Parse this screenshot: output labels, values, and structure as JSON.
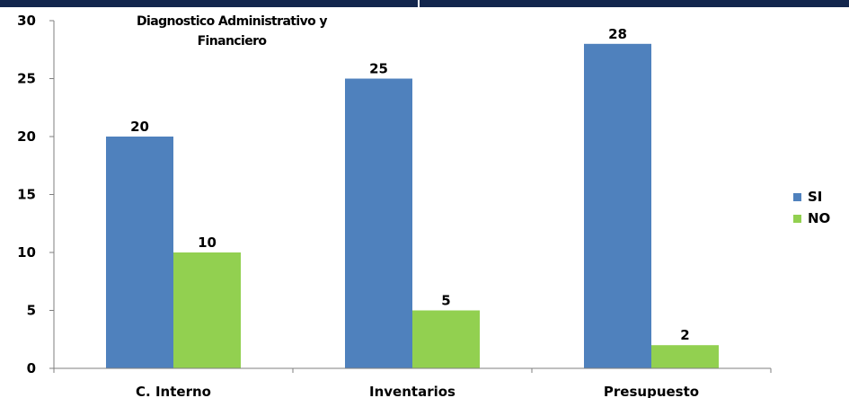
{
  "chart_data": {
    "type": "bar",
    "title": "Diagnostico Administrativo  y Financiero",
    "title_lines": [
      "Diagnostico Administrativo  y",
      "Financiero"
    ],
    "categories": [
      "C. Interno",
      "Inventarios",
      "Presupuesto"
    ],
    "series": [
      {
        "name": "SI",
        "values": [
          20,
          25,
          28
        ],
        "color": "#4f81bd"
      },
      {
        "name": "NO",
        "values": [
          10,
          5,
          2
        ],
        "color": "#92d050"
      }
    ],
    "xlabel": "",
    "ylabel": "",
    "ylim": [
      0,
      30
    ],
    "yticks": [
      0,
      5,
      10,
      15,
      20,
      25,
      30
    ],
    "grid": false,
    "legend": "right"
  },
  "colors": {
    "top_bar": "#13264d",
    "axis": "#7f7f7f"
  }
}
